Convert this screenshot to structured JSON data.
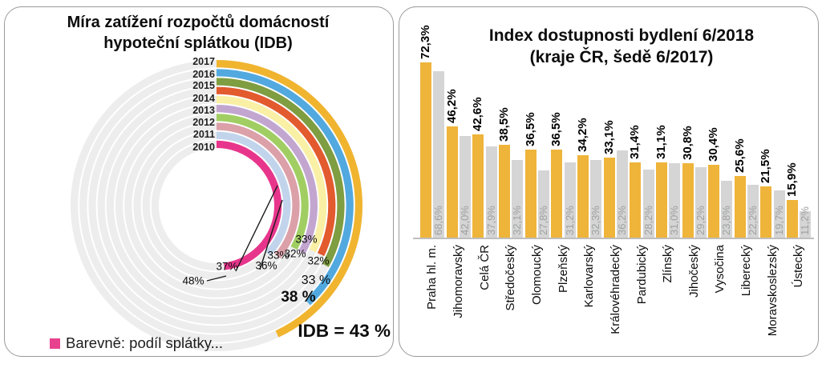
{
  "chart_data": [
    {
      "type": "radial-bar",
      "title": "Míra zatížení rozpočtů domácností hypoteční splátkou (IDB)",
      "title_lines": [
        "Míra zatížení rozpočtů domácností",
        "hypoteční splátkou (IDB)"
      ],
      "unit": "%",
      "legend_label": "Barevně: podíl splátky...",
      "legend_color": "#e8428f",
      "track_color": "#ededed",
      "start_angle_deg": 0,
      "rings_outer_to_inner": [
        {
          "year": "2017",
          "value": 43,
          "value_label": "IDB = 43 %",
          "color": "#f0b42f"
        },
        {
          "year": "2016",
          "value": 38,
          "value_label": "38 %",
          "color": "#51a9df"
        },
        {
          "year": "2015",
          "value": 33,
          "value_label": "33 %",
          "color": "#7f9d41"
        },
        {
          "year": "2014",
          "value": 32,
          "value_label": "32%",
          "color": "#e25a2e"
        },
        {
          "year": "2013",
          "value": 32,
          "value_label": "32%",
          "color": "#faf0a5"
        },
        {
          "year": "2012",
          "value": 33,
          "value_label": "33%",
          "color": "#c2a6d0"
        },
        {
          "year": "2011",
          "value": 33,
          "value_label": "33%",
          "color": "#a1ce62"
        },
        {
          "year": "2010",
          "value": 36,
          "value_label": "36%",
          "color": "#dca0a8"
        },
        {
          "year": "",
          "value": 37,
          "value_label": "37%",
          "color": "#c2d4ec"
        },
        {
          "year": "",
          "value": 48,
          "value_label": "48%",
          "color": "#e8358c"
        }
      ]
    },
    {
      "type": "bar",
      "title": "Index dostupnosti bydlení 6/2018 (kraje ČR, šedě 6/2017)",
      "title_lines": [
        "Index dostupnosti bydlení 6/2018",
        "(kraje ČR, šedě 6/2017)"
      ],
      "unit": "%",
      "ylim": [
        0,
        75
      ],
      "grid": false,
      "legend": "none",
      "categories": [
        "Praha hl. m.",
        "Jihomoravský",
        "Celá ČR",
        "Středočeský",
        "Olomoucký",
        "Plzeňský",
        "Karlovarský",
        "Královéhradecký",
        "Pardubický",
        "Zlínský",
        "Jihočeský",
        "Vysočina",
        "Liberecký",
        "Moravskoslezský",
        "Ústecký"
      ],
      "series": [
        {
          "name": "6/2018",
          "color": "#efb43a",
          "values": [
            72.3,
            46.2,
            42.6,
            38.5,
            36.5,
            36.5,
            34.2,
            33.1,
            31.4,
            31.1,
            30.8,
            30.4,
            25.6,
            21.5,
            15.9
          ]
        },
        {
          "name": "6/2017",
          "color": "#d5d5d5",
          "values": [
            68.6,
            42.0,
            37.9,
            32.1,
            27.8,
            31.2,
            32.3,
            36.2,
            28.2,
            31.0,
            29.2,
            23.8,
            22.2,
            19.7,
            11.2
          ]
        }
      ]
    }
  ]
}
